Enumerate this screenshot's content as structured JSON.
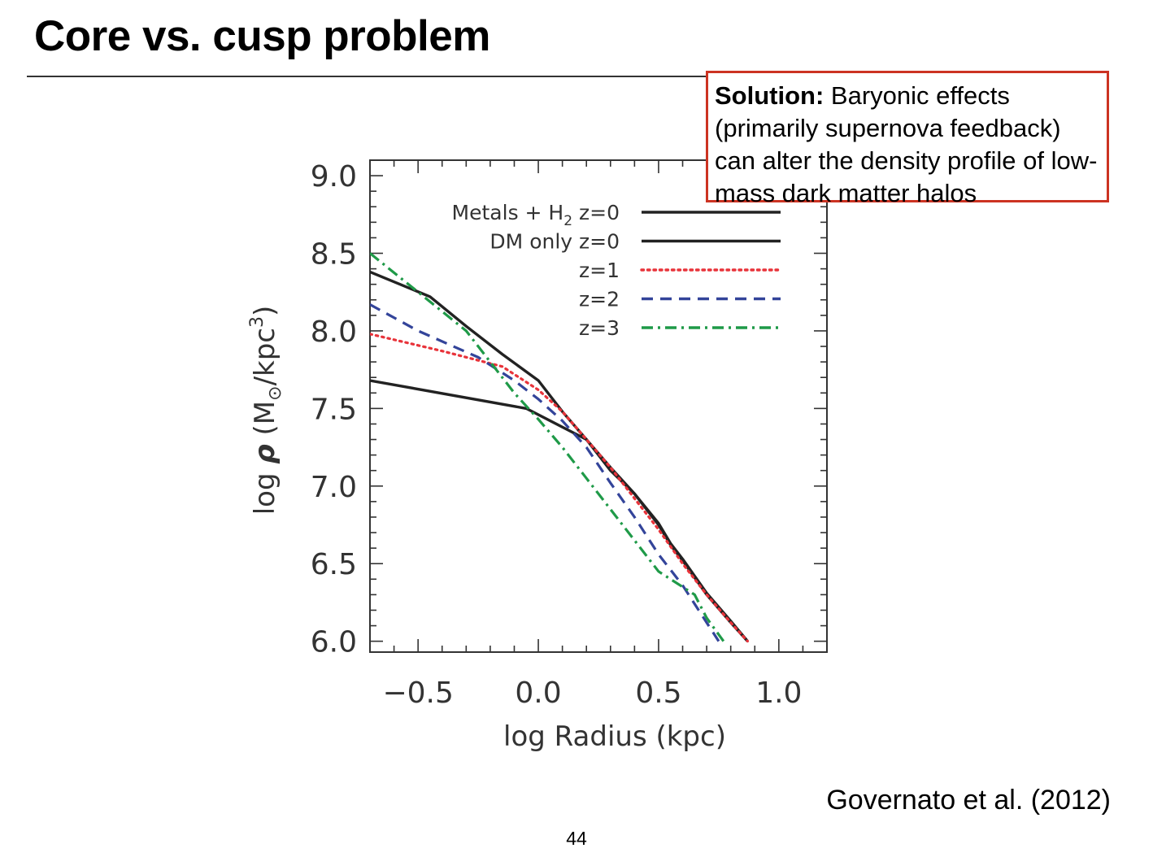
{
  "slide": {
    "title": "Core vs. cusp problem",
    "solution_label": "Solution:",
    "solution_text": " Baryonic effects (primarily supernova feedback) can alter the density profile of low-mass dark matter halos",
    "citation": "Governato et al. (2012)",
    "page_number": "44"
  },
  "chart_data": {
    "type": "line",
    "title": "",
    "xlabel": "log Radius (kpc)",
    "ylabel_parts": [
      "log ",
      "ρ",
      " (M",
      "⊙",
      "/kpc",
      "3",
      ")"
    ],
    "xlim": [
      -0.7,
      1.2
    ],
    "ylim": [
      5.93,
      9.1
    ],
    "x_ticks": [
      -0.5,
      0.0,
      0.5,
      1.0
    ],
    "x_tick_labels": [
      "−0.5",
      "0.0",
      "0.5",
      "1.0"
    ],
    "y_ticks": [
      6.0,
      6.5,
      7.0,
      7.5,
      8.0,
      8.5,
      9.0
    ],
    "y_tick_labels": [
      "6.0",
      "6.5",
      "7.0",
      "7.5",
      "8.0",
      "8.5",
      "9.0"
    ],
    "legend_position": "top-right",
    "series": [
      {
        "name": "Metals + H2 z=0",
        "legend_label": "Metals + H",
        "legend_sub": "2",
        "legend_suffix": " z=0",
        "color": "#222222",
        "dash": "solid",
        "x": [
          -0.7,
          -0.05,
          0.2,
          0.3,
          0.4,
          0.5,
          0.55,
          0.6,
          0.7,
          0.8,
          0.87
        ],
        "y": [
          7.68,
          7.5,
          7.3,
          7.1,
          6.95,
          6.75,
          6.62,
          6.52,
          6.3,
          6.12,
          6.0
        ]
      },
      {
        "name": "DM only z=0",
        "legend_label": "DM only z=0",
        "color": "#222222",
        "dash": "solid",
        "x": [
          -0.7,
          -0.45,
          -0.3,
          -0.15,
          0.0,
          0.1,
          0.2,
          0.3,
          0.4,
          0.5,
          0.55,
          0.6,
          0.7,
          0.8,
          0.87
        ],
        "y": [
          8.38,
          8.22,
          8.03,
          7.85,
          7.68,
          7.48,
          7.3,
          7.12,
          6.95,
          6.76,
          6.63,
          6.53,
          6.31,
          6.13,
          6.0
        ]
      },
      {
        "name": "z=1",
        "legend_label": "z=1",
        "color": "#e8333a",
        "dash": "dotted",
        "x": [
          -0.7,
          -0.4,
          -0.15,
          0.0,
          0.1,
          0.2,
          0.3,
          0.4,
          0.5,
          0.6,
          0.7,
          0.8,
          0.87
        ],
        "y": [
          7.98,
          7.87,
          7.77,
          7.62,
          7.48,
          7.3,
          7.12,
          6.92,
          6.72,
          6.5,
          6.3,
          6.12,
          6.0
        ]
      },
      {
        "name": "z=2",
        "legend_label": "z=2",
        "color": "#33449a",
        "dash": "dashed",
        "x": [
          -0.7,
          -0.5,
          -0.25,
          -0.1,
          0.0,
          0.1,
          0.2,
          0.3,
          0.4,
          0.5,
          0.6,
          0.7,
          0.75
        ],
        "y": [
          8.17,
          8.0,
          7.83,
          7.68,
          7.56,
          7.42,
          7.25,
          7.02,
          6.8,
          6.56,
          6.36,
          6.12,
          6.0
        ]
      },
      {
        "name": "z=3",
        "legend_label": "z=3",
        "color": "#1f9a48",
        "dash": "dashdot",
        "x": [
          -0.7,
          -0.5,
          -0.3,
          -0.2,
          -0.1,
          0.0,
          0.1,
          0.2,
          0.3,
          0.4,
          0.5,
          0.6,
          0.65,
          0.7,
          0.77
        ],
        "y": [
          8.5,
          8.25,
          8.0,
          7.8,
          7.6,
          7.43,
          7.25,
          7.05,
          6.85,
          6.65,
          6.45,
          6.35,
          6.3,
          6.15,
          6.0
        ]
      }
    ]
  }
}
